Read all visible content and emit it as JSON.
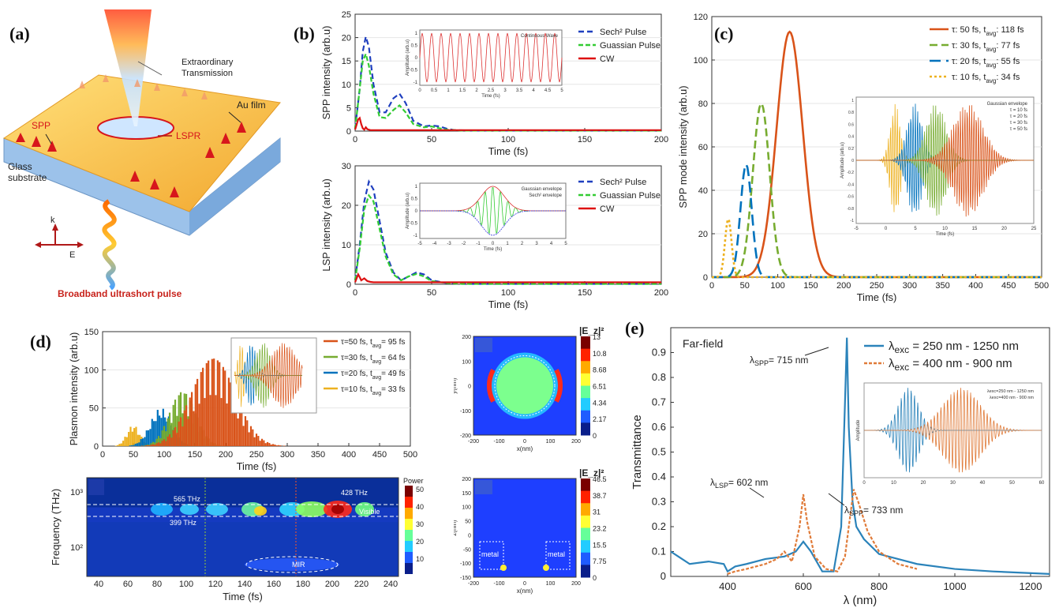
{
  "labels": {
    "a": "(a)",
    "b": "(b)",
    "c": "(c)",
    "d": "(d)",
    "e": "(e)"
  },
  "panel_a": {
    "extraordinary": "Extraordinary",
    "transmission": "Transmission",
    "au_film": "Au film",
    "spp": "SPP",
    "lspr": "LSPR",
    "glass": "Glass",
    "substrate": "substrate",
    "k": "k",
    "e": "E",
    "pulse": "Broadband ultrashort pulse",
    "colors": {
      "gold": "#f5b93d",
      "glass": "#9fc3e6",
      "red": "#d7161c"
    }
  },
  "chart_data": [
    {
      "id": "b-top",
      "type": "line",
      "ylabel": "SPP intensity (arb.u)",
      "xlabel": "Time (fs)",
      "xlim": [
        0,
        200
      ],
      "ylim": [
        0,
        25
      ],
      "xticks": [
        "0",
        "50",
        "100",
        "150",
        "200"
      ],
      "yticks": [
        "0",
        "5",
        "10",
        "15",
        "20",
        "25"
      ],
      "series": [
        {
          "name": "Sech² Pulse",
          "color": "#1f3fbf",
          "dash": "7,4",
          "x": [
            0,
            3,
            5,
            7,
            9,
            12,
            16,
            20,
            25,
            29,
            33,
            38,
            45,
            50,
            55,
            60,
            65,
            80,
            100,
            200
          ],
          "y": [
            0.5,
            9,
            17,
            20.2,
            18,
            10,
            4,
            4,
            7,
            8,
            6,
            2.2,
            1,
            1.2,
            1,
            0.5,
            0.2,
            0.1,
            0.1,
            0.1
          ]
        },
        {
          "name": "Guassian Pulse",
          "color": "#33cc33",
          "dash": "6,3",
          "x": [
            0,
            3,
            5,
            7,
            9,
            12,
            16,
            20,
            25,
            29,
            33,
            38,
            45,
            50,
            55,
            60,
            70,
            100,
            200
          ],
          "y": [
            0.5,
            9,
            15,
            16.5,
            14,
            8,
            3,
            2.8,
            4.5,
            5.5,
            4,
            1.5,
            0.8,
            1,
            0.6,
            0.3,
            0.1,
            0.1,
            0.1
          ]
        },
        {
          "name": "CW",
          "color": "#dd1111",
          "dash": "",
          "x": [
            0,
            2,
            3,
            4,
            5,
            6,
            7,
            8,
            10,
            12,
            200
          ],
          "y": [
            0.3,
            2.5,
            2.8,
            1.5,
            0.6,
            0.3,
            0.8,
            0.4,
            0.2,
            0.2,
            0.2
          ]
        }
      ],
      "inset": {
        "label": "Continuous Wave",
        "xlabel": "Time (fs)",
        "ylabel": "Amplitude (arb.u)",
        "xticks": [
          "0",
          "0.5",
          "1",
          "1.5",
          "2",
          "2.5",
          "3",
          "3.5",
          "4",
          "4.5",
          "5"
        ],
        "yticks": [
          "1",
          "0.5",
          "0",
          "-0.5",
          "-1"
        ]
      }
    },
    {
      "id": "b-bottom",
      "type": "line",
      "ylabel": "LSP intensity (arb.u)",
      "xlabel": "Time (fs)",
      "xlim": [
        0,
        200
      ],
      "ylim": [
        0,
        30
      ],
      "xticks": [
        "0",
        "50",
        "100",
        "150",
        "200"
      ],
      "yticks": [
        "0",
        "10",
        "20",
        "30"
      ],
      "series": [
        {
          "name": "Sech² Pulse",
          "color": "#1f3fbf",
          "dash": "7,4",
          "x": [
            0,
            3,
            6,
            9,
            12,
            16,
            20,
            25,
            30,
            35,
            40,
            45,
            50,
            60,
            70,
            200
          ],
          "y": [
            1,
            10,
            21,
            26,
            24,
            16,
            8,
            3,
            1,
            2,
            3,
            2.5,
            1,
            0.3,
            0.1,
            0.1
          ]
        },
        {
          "name": "Guassian Pulse",
          "color": "#33cc33",
          "dash": "6,3",
          "x": [
            0,
            3,
            6,
            9,
            12,
            16,
            20,
            25,
            30,
            35,
            40,
            45,
            50,
            60,
            70,
            200
          ],
          "y": [
            1,
            9,
            19,
            22.5,
            21,
            14,
            7,
            2.5,
            1,
            2,
            2.6,
            2,
            0.8,
            0.3,
            0.1,
            0.1
          ]
        },
        {
          "name": "CW",
          "color": "#dd1111",
          "dash": "",
          "x": [
            0,
            2,
            3,
            4,
            6,
            8,
            10,
            12,
            200
          ],
          "y": [
            0.5,
            2.5,
            1.8,
            1,
            1.5,
            0.8,
            0.6,
            0.5,
            0.5
          ]
        }
      ],
      "inset": {
        "label1": "Gaussian envelope",
        "label2": "Sech² envelope",
        "xlabel": "Time (fs)",
        "ylabel": "Amplitude (arb.u)",
        "xticks": [
          "-5",
          "-4",
          "-3",
          "-2",
          "-1",
          "0",
          "1",
          "2",
          "3",
          "4",
          "5"
        ],
        "yticks": [
          "1",
          "0.5",
          "0",
          "-0.5",
          "-1"
        ]
      }
    },
    {
      "id": "c",
      "type": "line",
      "ylabel": "SPP mode intensity (arb.u)",
      "xlabel": "Time (fs)",
      "xlim": [
        0,
        500
      ],
      "ylim": [
        0,
        120
      ],
      "xticks": [
        "0",
        "50",
        "100",
        "150",
        "200",
        "250",
        "300",
        "350",
        "400",
        "450",
        "500"
      ],
      "yticks": [
        "0",
        "20",
        "40",
        "60",
        "80",
        "100",
        "120"
      ],
      "series": [
        {
          "name": "τ: 50 fs, t_avg: 118 fs",
          "label_main": "τ: 50 fs, t",
          "label_sub": "avg",
          "label_end": ": 118 fs",
          "color": "#d95319",
          "dash": "",
          "peak": 113,
          "center": 118,
          "width": 28
        },
        {
          "name": "τ: 30 fs, t_avg: 77 fs",
          "label_main": "τ: 30 fs, t",
          "label_sub": "avg",
          "label_end": ": 77 fs",
          "color": "#77ac30",
          "dash": "10,5",
          "peak": 80,
          "center": 75,
          "width": 18
        },
        {
          "name": "τ: 20 fs, t_avg: 55 fs",
          "label_main": "τ: 20 fs, t",
          "label_sub": "avg",
          "label_end": ": 55 fs",
          "color": "#0072bd",
          "dash": "14,7",
          "peak": 52,
          "center": 52,
          "width": 12
        },
        {
          "name": "τ: 10 fs, t_avg: 34 fs",
          "label_main": "τ: 10 fs, t",
          "label_sub": "avg",
          "label_end": ": 34 fs",
          "color": "#edb120",
          "dash": "3,3",
          "peak": 27,
          "center": 25,
          "width": 7
        }
      ],
      "inset": {
        "legend": [
          "Gaussian envelope",
          "τ = 10 fs",
          "τ = 20 fs",
          "τ = 30 fs",
          "τ = 50 fs"
        ],
        "xlabel": "Time (fs)",
        "ylabel": "Amplitude (arb.u)",
        "xticks": [
          "-5",
          "0",
          "5",
          "10",
          "15",
          "20",
          "25"
        ],
        "yticks": [
          "1",
          "0.8",
          "0.6",
          "0.4",
          "0.2",
          "0",
          "-0.2",
          "-0.4",
          "-0.6",
          "-0.8",
          "-1"
        ]
      }
    },
    {
      "id": "d-top",
      "type": "bar",
      "ylabel": "Plasmon intensity (arb.u)",
      "xlabel": "Time (fs)",
      "xlim": [
        0,
        500
      ],
      "ylim": [
        0,
        150
      ],
      "xticks": [
        "0",
        "50",
        "100",
        "150",
        "200",
        "250",
        "300",
        "350",
        "400",
        "450",
        "500"
      ],
      "yticks": [
        "0",
        "50",
        "100",
        "150"
      ],
      "series": [
        {
          "name": "τ=50 fs, t_avg= 95 fs",
          "label_main": "τ=50 fs, t",
          "label_sub": "avg",
          "label_end": "= 95 fs",
          "color": "#d95319",
          "peak": 122,
          "center": 180,
          "width": 50
        },
        {
          "name": "τ=30 fs, t_avg= 64 fs",
          "label_main": "τ=30 fs, t",
          "label_sub": "avg",
          "label_end": "= 64 fs",
          "color": "#77ac30",
          "peak": 75,
          "center": 130,
          "width": 30
        },
        {
          "name": "τ=20 fs, t_avg= 49 fs",
          "label_main": "τ=20 fs, t",
          "label_sub": "avg",
          "label_end": "= 49 fs",
          "color": "#0072bd",
          "peak": 50,
          "center": 95,
          "width": 25
        },
        {
          "name": "τ=10 fs, t_avg= 33 fs",
          "label_main": "τ=10 fs, t",
          "label_sub": "avg",
          "label_end": "= 33 fs",
          "color": "#edb120",
          "peak": 28,
          "center": 50,
          "width": 15
        }
      ]
    },
    {
      "id": "d-bottom",
      "type": "heatmap",
      "ylabel": "Frequency (THz)",
      "xlabel": "Time (fs)",
      "xticks": [
        "40",
        "60",
        "80",
        "100",
        "120",
        "140",
        "160",
        "180",
        "200",
        "220",
        "240"
      ],
      "yticks": [
        "10³",
        "10²"
      ],
      "colorbar_title": "Power",
      "colorbar_ticks": [
        "50",
        "40",
        "30",
        "20",
        "10"
      ],
      "annotations": [
        "565 THz",
        "399 THz",
        "428 THz",
        "Visible",
        "MIR"
      ]
    },
    {
      "id": "d-field-top",
      "type": "heatmap",
      "title": "|E_z|²",
      "xlabel": "x(nm)",
      "ylabel": "y(nm)",
      "xticks": [
        "-200",
        "-100",
        "0",
        "100",
        "200"
      ],
      "yticks": [
        "200",
        "100",
        "0",
        "-100",
        "-200"
      ],
      "colorbar_ticks": [
        "13",
        "10.8",
        "8.68",
        "6.51",
        "4.34",
        "2.17",
        "0"
      ]
    },
    {
      "id": "d-field-bottom",
      "type": "heatmap",
      "title": "|E_z|²",
      "xlabel": "x(nm)",
      "ylabel": "z(nm)",
      "xticks": [
        "-200",
        "-100",
        "0",
        "100",
        "200"
      ],
      "yticks": [
        "200",
        "150",
        "100",
        "50",
        "0",
        "-50",
        "-100",
        "-150"
      ],
      "colorbar_ticks": [
        "46.5",
        "38.7",
        "31",
        "23.2",
        "15.5",
        "7.75",
        "0"
      ],
      "annotations": [
        "metal",
        "metal"
      ]
    },
    {
      "id": "e",
      "type": "line",
      "ylabel": "Transmittance",
      "xlabel": "λ (nm)",
      "xlim": [
        250,
        1250
      ],
      "ylim": [
        0,
        1.0
      ],
      "xticks": [
        "400",
        "600",
        "800",
        "1000",
        "1200"
      ],
      "yticks": [
        "0",
        "0.1",
        "0.2",
        "0.3",
        "0.4",
        "0.5",
        "0.6",
        "0.7",
        "0.8",
        "0.9"
      ],
      "title": "Far-field",
      "series": [
        {
          "name": "λexc = 250 nm - 1250 nm",
          "label_main": "λ",
          "label_sub": "exc",
          "label_end": " = 250 nm - 1250 nm",
          "color": "#2b83ba",
          "dash": "",
          "x": [
            250,
            270,
            300,
            350,
            390,
            400,
            420,
            450,
            500,
            550,
            580,
            600,
            620,
            650,
            680,
            700,
            710,
            715,
            720,
            730,
            740,
            760,
            800,
            900,
            1000,
            1100,
            1250
          ],
          "y": [
            0.1,
            0.08,
            0.05,
            0.06,
            0.05,
            0.02,
            0.04,
            0.05,
            0.07,
            0.08,
            0.1,
            0.14,
            0.1,
            0.02,
            0.02,
            0.2,
            0.7,
            0.96,
            0.6,
            0.3,
            0.2,
            0.15,
            0.09,
            0.05,
            0.03,
            0.02,
            0.01
          ]
        },
        {
          "name": "λexc = 400 nm - 900 nm",
          "label_main": "λ",
          "label_sub": "exc",
          "label_end": " = 400 nm - 900 nm",
          "color": "#e07b39",
          "dash": "4,2",
          "x": [
            400,
            420,
            450,
            500,
            530,
            550,
            570,
            590,
            600,
            610,
            630,
            660,
            690,
            710,
            720,
            733,
            745,
            770,
            800,
            850,
            900
          ],
          "y": [
            0.01,
            0.02,
            0.03,
            0.05,
            0.07,
            0.1,
            0.06,
            0.2,
            0.33,
            0.22,
            0.08,
            0.03,
            0.02,
            0.08,
            0.2,
            0.35,
            0.3,
            0.18,
            0.1,
            0.05,
            0.03
          ]
        }
      ],
      "annotations": {
        "spp715": "= 715 nm",
        "lsp602": "= 602 nm",
        "spp733": "= 733 nm",
        "sub_spp": "SPP",
        "sub_lsp": "LSP"
      },
      "inset": {
        "legend": [
          "λexc=250 nm - 1250 nm",
          "λexc=400 nm - 900 nm"
        ],
        "ylabel": "Amplitude",
        "xticks": [
          "0",
          "10",
          "20",
          "30",
          "40",
          "50",
          "60"
        ]
      }
    }
  ]
}
